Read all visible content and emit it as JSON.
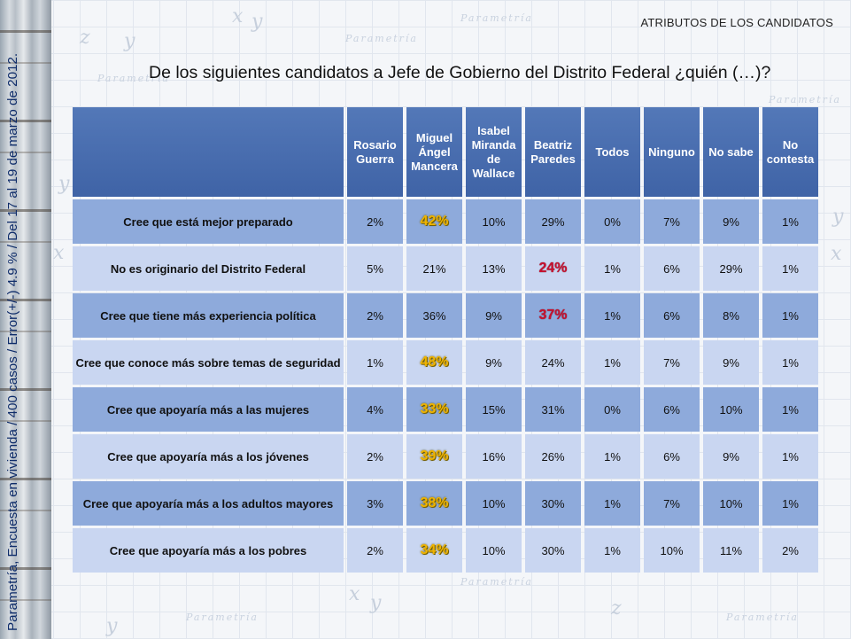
{
  "section_label": "ATRIBUTOS DE LOS CANDIDATOS",
  "question": "De los siguientes candidatos a Jefe de Gobierno del Distrito Federal ¿quién (…)?",
  "side_note": "Parametría, Encuesta en vivienda / 400 casos / Error(+/-) 4.9 % /  Del 17 al 19 de marzo de 2012.",
  "watermark_text": "Parametría",
  "colors": {
    "header_bg": "#4a6fb0",
    "row_dark": "#8eaadb",
    "row_light": "#c9d6f1",
    "highlight_yellow": "#f0b400",
    "highlight_red": "#c8102e",
    "side_note_text": "#0d2b69"
  },
  "table": {
    "columns": [
      "Rosario Guerra",
      "Miguel Ángel Mancera",
      "Isabel Miranda de Wallace",
      "Beatriz Paredes",
      "Todos",
      "Ninguno",
      "No sabe",
      "No contesta"
    ],
    "rows": [
      {
        "label": "Cree que está mejor preparado",
        "values": [
          "2%",
          "42%",
          "10%",
          "29%",
          "0%",
          "7%",
          "9%",
          "1%"
        ],
        "highlight": [
          null,
          "yellow",
          null,
          null,
          null,
          null,
          null,
          null
        ]
      },
      {
        "label": "No es originario del Distrito Federal",
        "values": [
          "5%",
          "21%",
          "13%",
          "24%",
          "1%",
          "6%",
          "29%",
          "1%"
        ],
        "highlight": [
          null,
          null,
          null,
          "red",
          null,
          null,
          null,
          null
        ]
      },
      {
        "label": "Cree que tiene más experiencia política",
        "values": [
          "2%",
          "36%",
          "9%",
          "37%",
          "1%",
          "6%",
          "8%",
          "1%"
        ],
        "highlight": [
          null,
          null,
          null,
          "red",
          null,
          null,
          null,
          null
        ]
      },
      {
        "label": "Cree que conoce más sobre temas de seguridad",
        "values": [
          "1%",
          "48%",
          "9%",
          "24%",
          "1%",
          "7%",
          "9%",
          "1%"
        ],
        "highlight": [
          null,
          "yellow",
          null,
          null,
          null,
          null,
          null,
          null
        ]
      },
      {
        "label": "Cree que apoyaría más a las mujeres",
        "values": [
          "4%",
          "33%",
          "15%",
          "31%",
          "0%",
          "6%",
          "10%",
          "1%"
        ],
        "highlight": [
          null,
          "yellow",
          null,
          null,
          null,
          null,
          null,
          null
        ]
      },
      {
        "label": "Cree que apoyaría más a los jóvenes",
        "values": [
          "2%",
          "39%",
          "16%",
          "26%",
          "1%",
          "6%",
          "9%",
          "1%"
        ],
        "highlight": [
          null,
          "yellow",
          null,
          null,
          null,
          null,
          null,
          null
        ]
      },
      {
        "label": "Cree que apoyaría más a los adultos mayores",
        "values": [
          "3%",
          "38%",
          "10%",
          "30%",
          "1%",
          "7%",
          "10%",
          "1%"
        ],
        "highlight": [
          null,
          "yellow",
          null,
          null,
          null,
          null,
          null,
          null
        ]
      },
      {
        "label": "Cree que apoyaría más a los pobres",
        "values": [
          "2%",
          "34%",
          "10%",
          "30%",
          "1%",
          "10%",
          "11%",
          "2%"
        ],
        "highlight": [
          null,
          "yellow",
          null,
          null,
          null,
          null,
          null,
          null
        ]
      }
    ]
  }
}
